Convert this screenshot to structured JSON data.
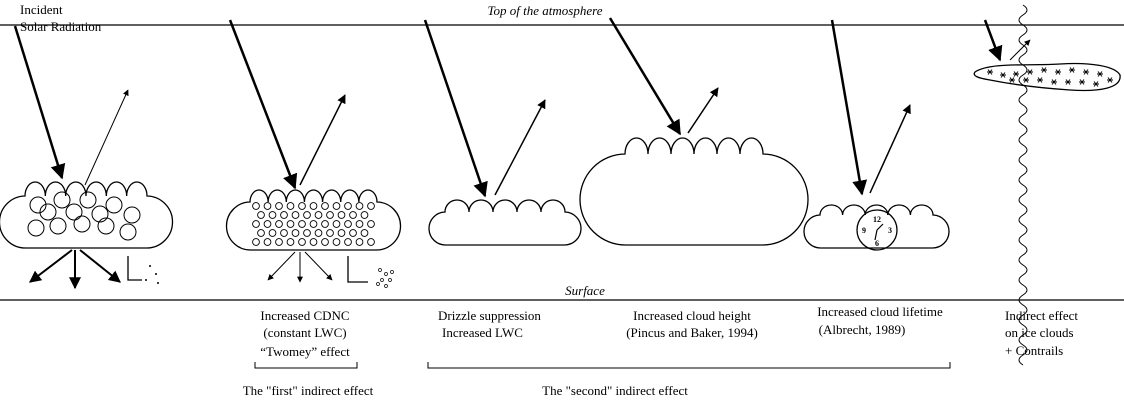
{
  "incident": [
    "Incident",
    "Solar Radiation"
  ],
  "top_label": "Top of the atmosphere",
  "surface_label": "Surface",
  "panels": [
    {
      "lines": [
        "Increased CDNC",
        "(constant LWC)",
        "“Twomey” effect"
      ]
    },
    {
      "lines": [
        "Drizzle suppression",
        "Increased LWC"
      ]
    },
    {
      "lines": [
        "Increased cloud height",
        "(Pincus and Baker, 1994)"
      ]
    },
    {
      "lines": [
        "Increased cloud lifetime",
        "(Albrecht, 1989)"
      ]
    },
    {
      "lines": [
        "Indirect effect",
        "on ice clouds",
        "+ Contrails"
      ]
    }
  ],
  "clock": [
    "12",
    "9",
    "3",
    "6"
  ],
  "effects": [
    "The \"first\" indirect effect",
    "The \"second\" indirect effect"
  ]
}
